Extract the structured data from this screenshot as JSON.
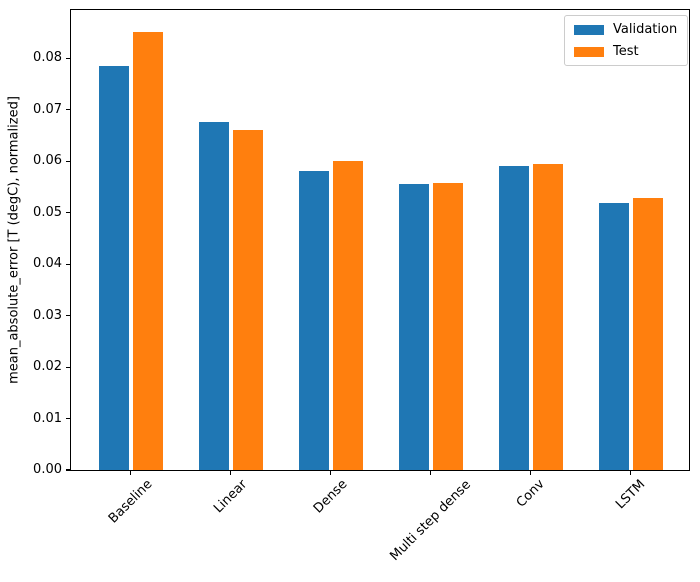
{
  "figure": {
    "background": "#ffffff"
  },
  "chart_data": {
    "type": "bar",
    "title": "",
    "xlabel": "",
    "ylabel": "mean_absolute_error [T (degC), normalized]",
    "categories": [
      "Baseline",
      "Linear",
      "Dense",
      "Multi step dense",
      "Conv",
      "LSTM"
    ],
    "series": [
      {
        "name": "Validation",
        "color": "#1f77b4",
        "values": [
          0.0785,
          0.0677,
          0.0581,
          0.0555,
          0.0591,
          0.0519
        ]
      },
      {
        "name": "Test",
        "color": "#ff7f0e",
        "values": [
          0.0851,
          0.0661,
          0.06,
          0.0558,
          0.0594,
          0.0529
        ]
      }
    ],
    "ylim": [
      0,
      0.0894
    ],
    "yticks": [
      {
        "value": 0.0,
        "label": "0.00"
      },
      {
        "value": 0.01,
        "label": "0.01"
      },
      {
        "value": 0.02,
        "label": "0.02"
      },
      {
        "value": 0.03,
        "label": "0.03"
      },
      {
        "value": 0.04,
        "label": "0.04"
      },
      {
        "value": 0.05,
        "label": "0.05"
      },
      {
        "value": 0.06,
        "label": "0.06"
      },
      {
        "value": 0.07,
        "label": "0.07"
      },
      {
        "value": 0.08,
        "label": "0.08"
      }
    ],
    "grid": false,
    "xtick_rotation": 45,
    "legend": {
      "position": "top-right",
      "entries": [
        "Validation",
        "Test"
      ]
    }
  }
}
